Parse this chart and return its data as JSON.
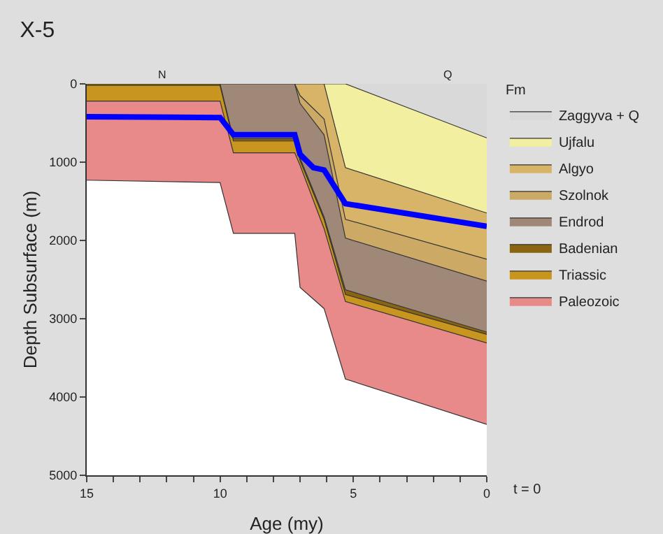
{
  "chart_data": {
    "type": "area",
    "stacked": true,
    "title": "X-5",
    "xlabel": "Age (my)",
    "ylabel": "Depth Subsurface (m)",
    "legend_title": "Fm",
    "x": [
      15,
      10,
      9.5,
      7.2,
      7.0,
      6.1,
      5.3,
      0
    ],
    "series": [
      {
        "name": "Zaggyva + Q",
        "color": "#d9d9d9",
        "values": [
          0,
          0,
          0,
          0,
          0,
          0,
          0,
          690
        ]
      },
      {
        "name": "Ujfalu",
        "color": "#f2f0a0",
        "values": [
          0,
          0,
          0,
          0,
          0,
          0,
          1070,
          960
        ]
      },
      {
        "name": "Algyo",
        "color": "#d8b468",
        "values": [
          0,
          0,
          0,
          0,
          150,
          450,
          660,
          590
        ]
      },
      {
        "name": "Szolnok",
        "color": "#ccaa66",
        "values": [
          0,
          0,
          0,
          0,
          100,
          200,
          240,
          280
        ]
      },
      {
        "name": "Endrod",
        "color": "#a08878",
        "values": [
          0,
          0,
          700,
          700,
          700,
          1050,
          660,
          650
        ]
      },
      {
        "name": "Badenian",
        "color": "#8a6410",
        "values": [
          20,
          20,
          30,
          30,
          30,
          30,
          60,
          30
        ]
      },
      {
        "name": "Triassic",
        "color": "#c8961e",
        "values": [
          200,
          200,
          150,
          150,
          60,
          120,
          90,
          110
        ]
      },
      {
        "name": "Paleozoic",
        "color": "#e88a8a",
        "values": [
          1010,
          1040,
          1030,
          1030,
          1560,
          1020,
          990,
          1040
        ]
      },
      {
        "type": "line",
        "color": "#0000ff",
        "x": [
          15,
          10,
          9.5,
          7.2,
          7.0,
          6.5,
          6.1,
          5.3,
          0
        ],
        "values": [
          420,
          430,
          650,
          650,
          900,
          1070,
          1100,
          1530,
          1820
        ]
      }
    ],
    "xlim": [
      15,
      0
    ],
    "xticks": [
      15,
      {
        "value": 14,
        "label": null
      },
      {
        "value": 13,
        "label": null
      },
      {
        "value": 12,
        "label": null
      },
      {
        "value": 11,
        "label": null
      },
      10,
      {
        "value": 9,
        "label": null
      },
      {
        "value": 8,
        "label": null
      },
      {
        "value": 7,
        "label": null
      },
      {
        "value": 6,
        "label": null
      },
      5,
      {
        "value": 4,
        "label": null
      },
      {
        "value": 3,
        "label": null
      },
      {
        "value": 2,
        "label": null
      },
      {
        "value": 1,
        "label": null
      },
      0
    ],
    "ylim": [
      5000,
      0
    ],
    "yticks": [
      0,
      1000,
      2000,
      3000,
      4000,
      5000
    ],
    "annotations": [
      "N",
      "Q",
      "t = 0"
    ],
    "legend": "right",
    "grid": false
  }
}
